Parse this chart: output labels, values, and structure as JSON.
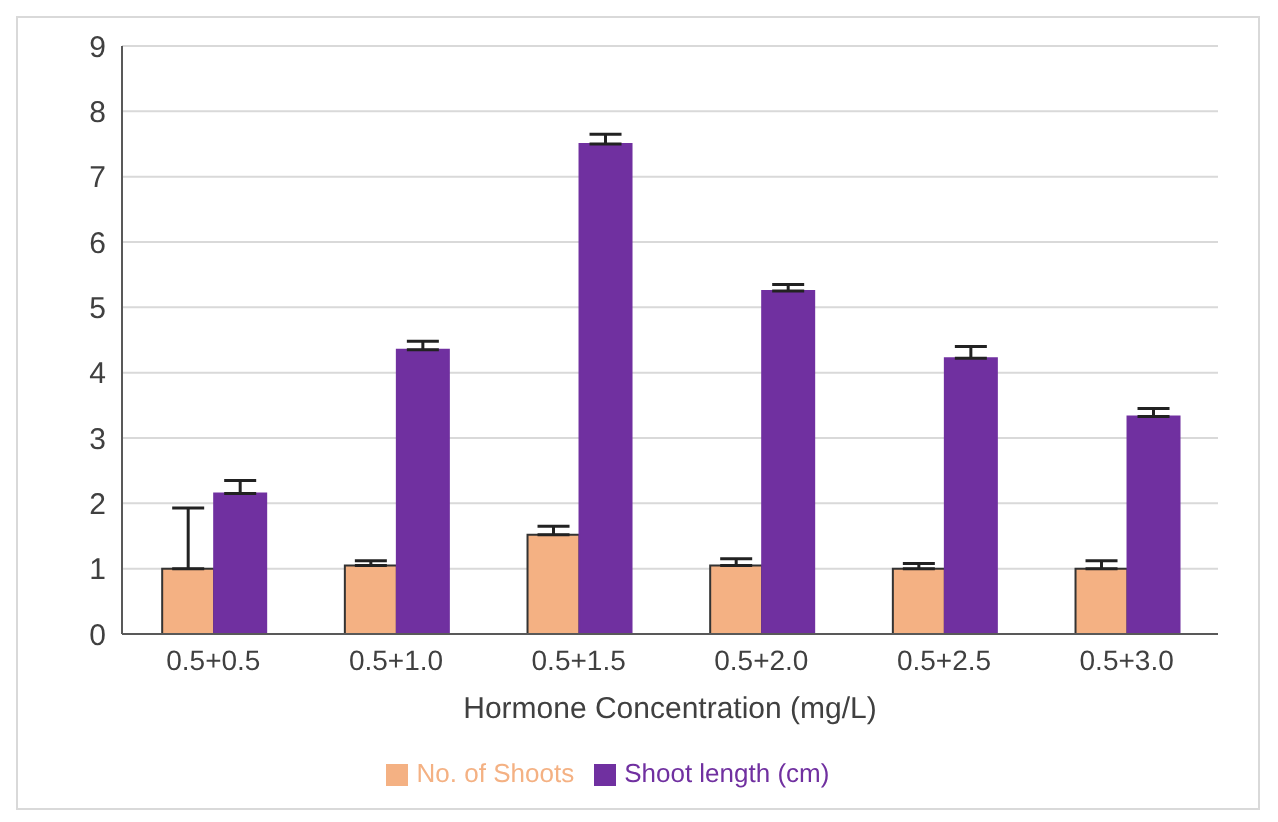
{
  "chart_data": {
    "type": "bar",
    "xlabel": "Hormone Concentration (mg/L)",
    "categories": [
      "0.5+0.5",
      "0.5+1.0",
      "0.5+1.5",
      "0.5+2.0",
      "0.5+2.5",
      "0.5+3.0"
    ],
    "series": [
      {
        "name": "No. of Shoots",
        "color": "#f4b183",
        "values": [
          1.0,
          1.05,
          1.52,
          1.05,
          1.0,
          1.0
        ],
        "errors": [
          [
            1.0,
            1.93
          ],
          [
            1.05,
            1.12
          ],
          [
            1.52,
            1.65
          ],
          [
            1.05,
            1.15
          ],
          [
            1.0,
            1.08
          ],
          [
            1.0,
            1.12
          ]
        ]
      },
      {
        "name": "Shoot length  (cm)",
        "color": "#7030a0",
        "values": [
          2.15,
          4.35,
          7.5,
          5.25,
          4.22,
          3.33
        ],
        "errors": [
          [
            2.15,
            2.35
          ],
          [
            4.35,
            4.48
          ],
          [
            7.5,
            7.65
          ],
          [
            5.25,
            5.35
          ],
          [
            4.22,
            4.4
          ],
          [
            3.33,
            3.45
          ]
        ]
      }
    ],
    "ylim": [
      0,
      9
    ],
    "yticks": [
      0,
      1,
      2,
      3,
      4,
      5,
      6,
      7,
      8,
      9
    ],
    "grid": "y",
    "legend": "bottom"
  }
}
